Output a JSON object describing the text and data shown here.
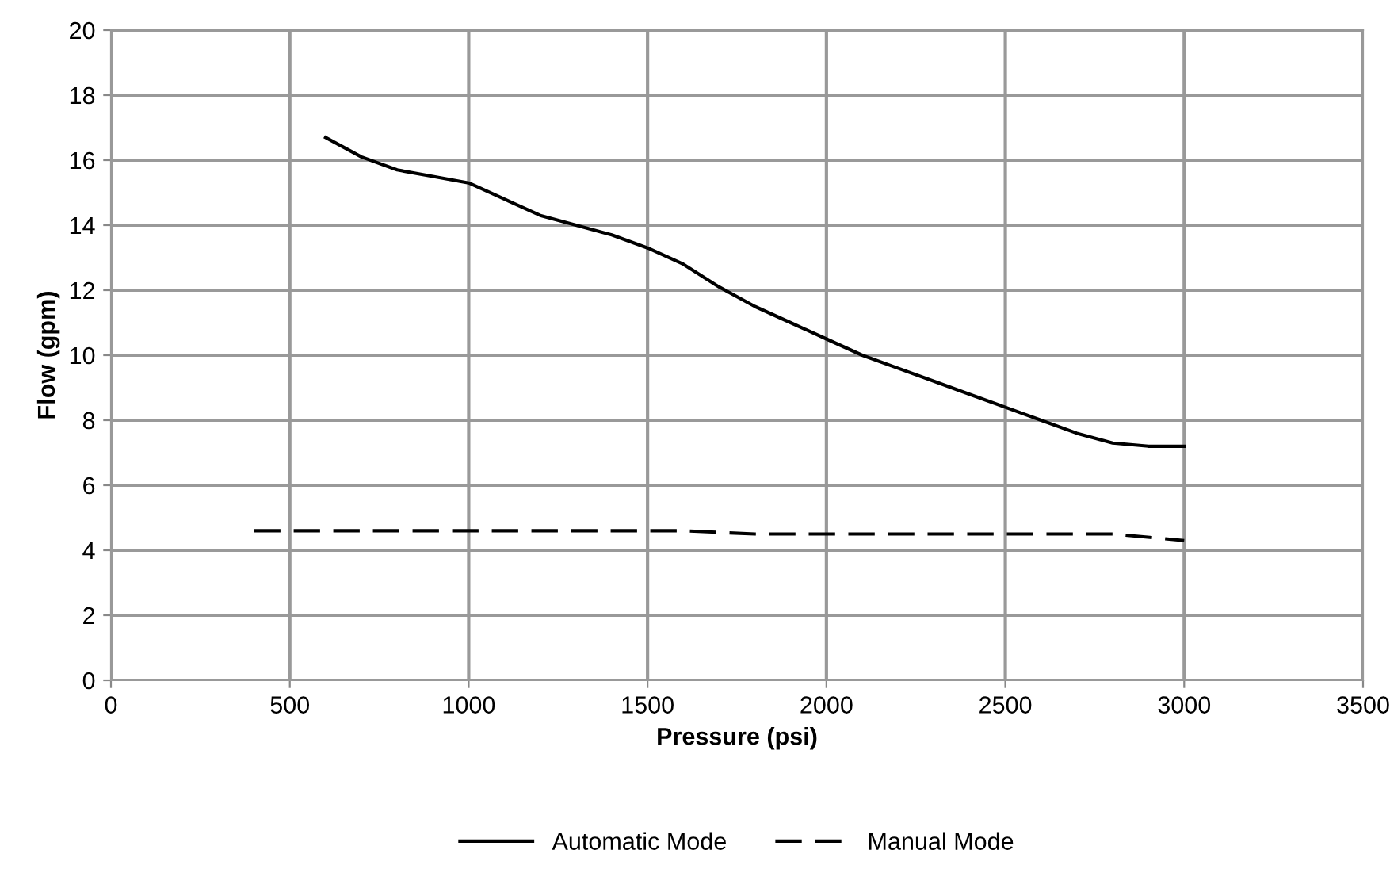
{
  "chart_data": {
    "type": "line",
    "xlabel": "Pressure (psi)",
    "ylabel": "Flow (gpm)",
    "xlim": [
      0,
      3500
    ],
    "xticks": [
      0,
      500,
      1000,
      1500,
      2000,
      2500,
      3000,
      3500
    ],
    "ylim": [
      0,
      20
    ],
    "yticks": [
      0,
      2,
      4,
      6,
      8,
      10,
      12,
      14,
      16,
      18,
      20
    ],
    "grid": true,
    "legend": "bottom",
    "marker": "none",
    "series": [
      {
        "name": "Automatic Mode",
        "color": "#000000",
        "line_style": "solid",
        "x": [
          600,
          700,
          800,
          900,
          1000,
          1100,
          1200,
          1300,
          1400,
          1500,
          1600,
          1700,
          1800,
          1900,
          2000,
          2100,
          2200,
          2300,
          2400,
          2500,
          2600,
          2700,
          2800,
          2900,
          3000
        ],
        "values": [
          16.7,
          16.1,
          15.7,
          15.5,
          15.3,
          14.8,
          14.3,
          14.0,
          13.7,
          13.3,
          12.8,
          12.1,
          11.5,
          11.0,
          10.5,
          10.0,
          9.6,
          9.2,
          8.8,
          8.4,
          8.0,
          7.6,
          7.3,
          7.2,
          7.2
        ]
      },
      {
        "name": "Manual Mode",
        "color": "#000000",
        "line_style": "dashed",
        "x": [
          400,
          800,
          1200,
          1600,
          1800,
          2200,
          2600,
          2800,
          3000
        ],
        "values": [
          4.6,
          4.6,
          4.6,
          4.6,
          4.5,
          4.5,
          4.5,
          4.5,
          4.3
        ]
      }
    ]
  }
}
